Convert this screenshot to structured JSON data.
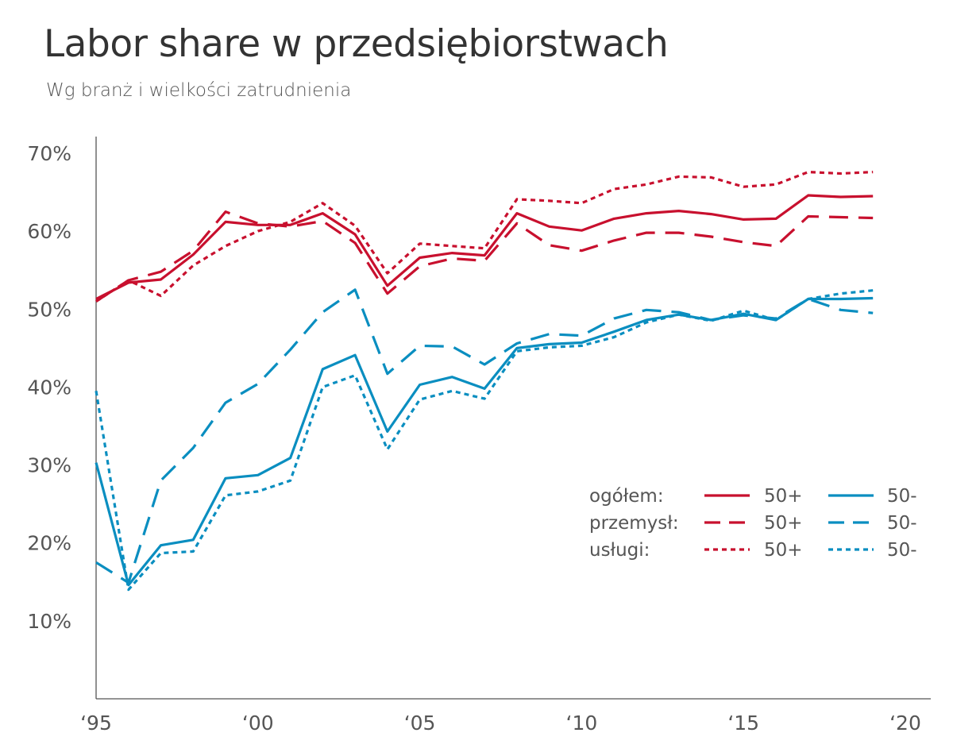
{
  "chart_data": {
    "type": "line",
    "title": "Labor share w przedsiębiorstwach",
    "subtitle": "Wg branż i wielkości zatrudnienia",
    "x": [
      1995,
      1996,
      1997,
      1998,
      1999,
      2000,
      2001,
      2002,
      2003,
      2004,
      2005,
      2006,
      2007,
      2008,
      2009,
      2010,
      2011,
      2012,
      2013,
      2014,
      2015,
      2016,
      2017,
      2018,
      2019
    ],
    "x_ticks": [
      1995,
      2000,
      2005,
      2010,
      2015,
      2020
    ],
    "x_tick_labels": [
      "‘95",
      "‘00",
      "‘05",
      "‘10",
      "‘15",
      "‘20"
    ],
    "xlim": [
      1995,
      2020
    ],
    "ylim": [
      0,
      70
    ],
    "y_ticks": [
      10,
      20,
      30,
      40,
      50,
      60,
      70
    ],
    "y_tick_labels": [
      "10%",
      "20%",
      "30%",
      "40%",
      "50%",
      "60%",
      "70%"
    ],
    "grid": false,
    "legend_position": "bottom-right",
    "legend": {
      "rows": [
        "ogółem:",
        "przemysł:",
        "usługi:"
      ],
      "cols": [
        "50+",
        "50-"
      ]
    },
    "colors": {
      "50+": "#c8102e",
      "50-": "#0a8ec0"
    },
    "series": [
      {
        "group": "ogółem",
        "size": "50+",
        "style": "solid",
        "values": [
          51.3,
          53.4,
          53.8,
          57.0,
          61.2,
          60.8,
          60.8,
          62.3,
          59.6,
          53.0,
          56.6,
          57.2,
          56.9,
          62.3,
          60.6,
          60.1,
          61.6,
          62.3,
          62.6,
          62.2,
          61.5,
          61.6,
          64.6,
          64.4,
          64.5
        ]
      },
      {
        "group": "przemysł",
        "size": "50+",
        "style": "dashed",
        "values": [
          51.0,
          53.7,
          54.8,
          57.5,
          62.5,
          61.0,
          60.6,
          61.3,
          58.5,
          52.0,
          55.5,
          56.5,
          56.2,
          61.0,
          58.2,
          57.5,
          58.8,
          59.8,
          59.8,
          59.3,
          58.6,
          58.1,
          61.9,
          61.8,
          61.7
        ]
      },
      {
        "group": "usługi",
        "size": "50+",
        "style": "dotted",
        "values": [
          51.0,
          53.7,
          51.7,
          55.6,
          58.1,
          60.0,
          61.2,
          63.6,
          60.7,
          54.6,
          58.4,
          58.1,
          57.8,
          64.1,
          63.9,
          63.6,
          65.4,
          66.0,
          67.0,
          66.9,
          65.7,
          66.0,
          67.6,
          67.4,
          67.6
        ]
      },
      {
        "group": "ogółem",
        "size": "50-",
        "style": "solid",
        "values": [
          30.3,
          14.6,
          19.7,
          20.4,
          28.3,
          28.7,
          30.9,
          42.3,
          44.1,
          34.3,
          40.3,
          41.3,
          39.8,
          45.0,
          45.5,
          45.7,
          47.1,
          48.6,
          49.3,
          48.6,
          49.4,
          48.6,
          51.3,
          51.3,
          51.4
        ]
      },
      {
        "group": "przemysł",
        "size": "50-",
        "style": "dashed",
        "values": [
          17.5,
          14.9,
          28.0,
          32.2,
          38.0,
          40.4,
          44.8,
          49.6,
          52.5,
          41.7,
          45.3,
          45.2,
          42.9,
          45.6,
          46.8,
          46.6,
          48.8,
          49.9,
          49.6,
          48.6,
          49.2,
          48.8,
          51.3,
          49.9,
          49.5
        ]
      },
      {
        "group": "usługi",
        "size": "50-",
        "style": "dotted",
        "values": [
          39.5,
          14.0,
          18.7,
          18.9,
          26.1,
          26.6,
          28.0,
          40.0,
          41.5,
          32.0,
          38.4,
          39.5,
          38.5,
          44.6,
          45.1,
          45.3,
          46.4,
          48.3,
          49.3,
          48.5,
          49.8,
          48.6,
          51.3,
          52.0,
          52.4
        ]
      }
    ]
  }
}
